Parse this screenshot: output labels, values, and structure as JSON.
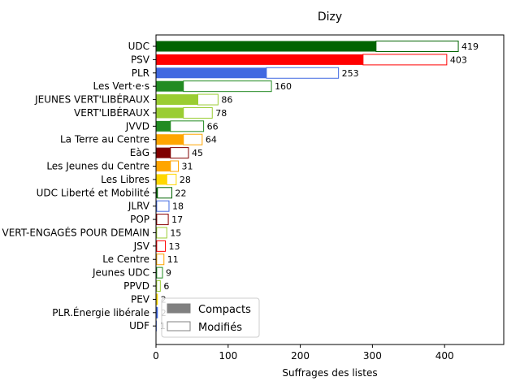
{
  "chart_data": {
    "type": "bar",
    "orientation": "horizontal",
    "title": "Dizy",
    "xlabel": "Suffrages des listes",
    "ylabel": "",
    "xlim": [
      0,
      482
    ],
    "xticks": [
      0,
      100,
      200,
      300,
      400
    ],
    "legend": {
      "placement": "lower-left",
      "entries": [
        {
          "label": "Compacts",
          "style": "filled",
          "color": "#808080"
        },
        {
          "label": "Modifiés",
          "style": "outline",
          "color": "#808080"
        }
      ]
    },
    "categories": [
      "UDC",
      "PSV",
      "PLR",
      "Les Vert·e·s",
      "JEUNES VERT'LIBÉRAUX",
      "VERT'LIBÉRAUX",
      "JVVD",
      "La Terre au Centre",
      "EàG",
      "Les Jeunes du Centre",
      "Les Libres",
      "UDC Liberté et Mobilité",
      "JLRV",
      "POP",
      "LES JEUNES VERT-ENGAGÉS POUR DEMAIN",
      "JSV",
      "Le Centre",
      "Jeunes UDC",
      "PPVD",
      "PEV",
      "PLR.Énergie libérale",
      "UDF"
    ],
    "series": [
      {
        "name": "Compacts",
        "values": [
          305,
          287,
          153,
          38,
          58,
          38,
          20,
          38,
          20,
          20,
          15,
          2,
          1,
          1,
          1,
          1,
          1,
          1,
          1,
          1,
          1,
          1
        ]
      },
      {
        "name": "Modifiés",
        "values": [
          114,
          116,
          100,
          122,
          28,
          40,
          46,
          26,
          25,
          11,
          13,
          20,
          17,
          16,
          14,
          12,
          10,
          8,
          5,
          1,
          1,
          0
        ]
      }
    ],
    "totals": [
      419,
      403,
      253,
      160,
      86,
      78,
      66,
      64,
      45,
      31,
      28,
      22,
      18,
      17,
      15,
      13,
      11,
      9,
      6,
      2,
      2,
      1
    ],
    "total_labels": [
      "419",
      "403",
      "253",
      "160",
      "86",
      "78",
      "66",
      "64",
      "45",
      "31",
      "28",
      "22",
      "18",
      "17",
      "15",
      "13",
      "11",
      "9",
      "6",
      "2",
      "2",
      "1"
    ],
    "colors": [
      "#006400",
      "#ff0000",
      "#4169e1",
      "#228b22",
      "#9acd32",
      "#9acd32",
      "#228b22",
      "#ffa500",
      "#800000",
      "#ffa500",
      "#ffd700",
      "#006400",
      "#4169e1",
      "#8b0000",
      "#9acd32",
      "#ff0000",
      "#ffa500",
      "#228b22",
      "#9acd32",
      "#ffd700",
      "#4169e1",
      "#4169e1"
    ]
  }
}
